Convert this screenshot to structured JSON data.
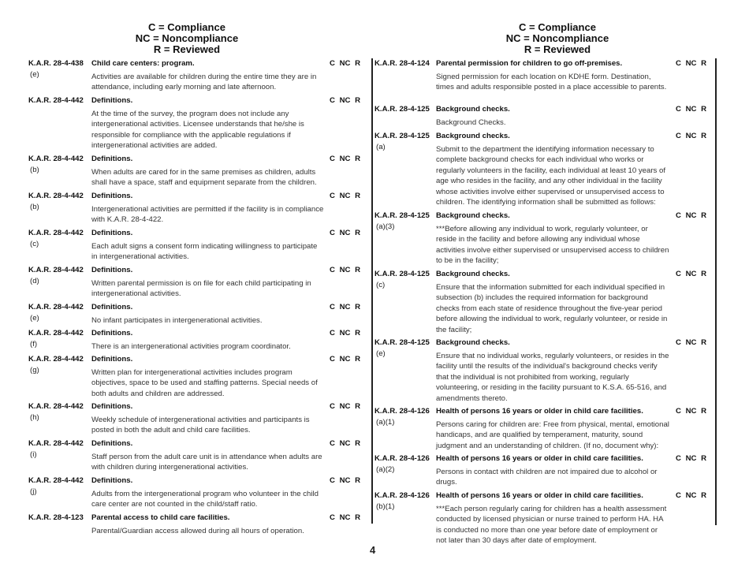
{
  "legend": {
    "c": "C  = Compliance",
    "nc": "NC = Noncompliance",
    "r": "R  = Reviewed"
  },
  "cnr_label": "C NC R",
  "left_entries": [
    {
      "code": "K.A.R. 28-4-438",
      "sub": "(e)",
      "title": "Child care centers: program.",
      "desc": "Activities are available for children during the entire time they are in attendance, including early morning and late afternoon."
    },
    {
      "code": "K.A.R. 28-4-442",
      "sub": "",
      "title": "Definitions.",
      "desc": "At the time of the survey, the program does not include any intergenerational activities.  Licensee understands that he/she is responsible for compliance with the applicable regulations if intergenerational activities are added."
    },
    {
      "code": "K.A.R. 28-4-442",
      "sub": "(b)",
      "title": "Definitions.",
      "desc": "When adults are cared for in the same premises as children, adults shall have a space, staff and equipment separate from the children."
    },
    {
      "code": "K.A.R. 28-4-442",
      "sub": "(b)",
      "title": "Definitions.",
      "desc": "Intergenerational activities are permitted if the facility is in compliance with K.A.R. 28-4-422."
    },
    {
      "code": "K.A.R. 28-4-442",
      "sub": "(c)",
      "title": "Definitions.",
      "desc": "Each adult signs a consent form indicating willingness to participate in intergenerational activities."
    },
    {
      "code": "K.A.R. 28-4-442",
      "sub": "(d)",
      "title": "Definitions.",
      "desc": "Written parental permission is on file for each child participating in intergenerational activities."
    },
    {
      "code": "K.A.R. 28-4-442",
      "sub": "(e)",
      "title": "Definitions.",
      "desc": "No infant participates in intergenerational activities."
    },
    {
      "code": "K.A.R. 28-4-442",
      "sub": "(f)",
      "title": "Definitions.",
      "desc": "There is an intergenerational activities program coordinator."
    },
    {
      "code": "K.A.R. 28-4-442",
      "sub": "(g)",
      "title": "Definitions.",
      "desc": "Written plan for intergenerational activities includes program objectives, space to be used and staffing patterns. Special needs of both adults and children are addressed."
    },
    {
      "code": "K.A.R. 28-4-442",
      "sub": "(h)",
      "title": "Definitions.",
      "desc": "Weekly schedule of intergenerational activities and participants is posted in both the adult and child care facilities."
    },
    {
      "code": "K.A.R. 28-4-442",
      "sub": "(i)",
      "title": "Definitions.",
      "desc": "Staff person from the adult care unit is in attendance when adults are with children during intergenerational activities."
    },
    {
      "code": "K.A.R. 28-4-442",
      "sub": "(j)",
      "title": "Definitions.",
      "desc": "Adults from the intergenerational program who volunteer in the child care center are not counted in the child/staff ratio."
    },
    {
      "code": "K.A.R. 28-4-123",
      "sub": "",
      "title": "Parental access to child care facilities.",
      "desc": "Parental/Guardian access allowed during all hours of operation."
    }
  ],
  "right_entries": [
    {
      "code": "K.A.R. 28-4-124",
      "sub": "",
      "title": "Parental permission for children to go off-premises.",
      "desc": "Signed permission for each location on KDHE form. Destination, times and adults responsible posted in a place accessible to parents."
    },
    {
      "code": "K.A.R. 28-4-125",
      "sub": "",
      "title": "Background checks.",
      "desc": "Background Checks."
    },
    {
      "code": "K.A.R. 28-4-125",
      "sub": "(a)",
      "title": "Background checks.",
      "desc": "Submit to the department the identifying information necessary to complete background checks for each individual who works or regularly volunteers in the facility, each individual at least 10 years of age who resides in the facility, and any other individual in the facility whose activities involve either supervised or unsupervised access to children. The identifying information shall be submitted as follows:"
    },
    {
      "code": "K.A.R. 28-4-125",
      "sub": "(a)(3)",
      "title": "Background checks.",
      "desc": "***Before allowing any individual to work, regularly volunteer, or reside in the facility and before allowing any individual whose activities involve either supervised or unsupervised access to children to be in the facility;"
    },
    {
      "code": "K.A.R. 28-4-125",
      "sub": "(c)",
      "title": "Background checks.",
      "desc": "Ensure that the information submitted for each individual specified in subsection (b) includes the required information for background checks from each state of residence throughout the five-year period before allowing the individual to work, regularly volunteer, or reside in the facility;"
    },
    {
      "code": "K.A.R. 28-4-125",
      "sub": "(e)",
      "title": "Background checks.",
      "desc": "Ensure that no individual works, regularly volunteers, or resides in the facility until the results of the individual's background checks verify that the individual is not prohibited from working, regularly volunteering, or residing in the facility pursuant to K.S.A. 65-516, and amendments thereto."
    },
    {
      "code": "K.A.R. 28-4-126",
      "sub": "(a)(1)",
      "title": "Health of persons 16 years or older in child care facilities.",
      "desc": "Persons caring for children are: Free from physical, mental, emotional handicaps, and are qualified by temperament, maturity, sound judgment and an understanding of children. (If no, document why):"
    },
    {
      "code": "K.A.R. 28-4-126",
      "sub": "(a)(2)",
      "title": "Health of persons 16 years or older in child care facilities.",
      "desc": "Persons in contact with children are not impaired due to alcohol or drugs."
    },
    {
      "code": "K.A.R. 28-4-126",
      "sub": "(b)(1)",
      "title": "Health of persons 16 years or older in child care facilities.",
      "desc": "***Each person regularly caring for children has a health assessment conducted by licensed physician or nurse trained to perform HA. HA is conducted no more than one year before date of employment or not later than 30 days after date of employment."
    }
  ],
  "page_number": "4"
}
